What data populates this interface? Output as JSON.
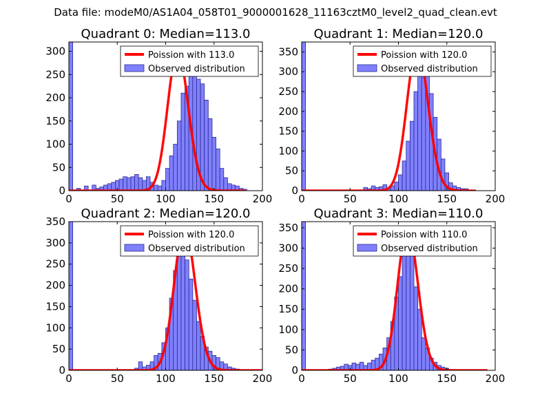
{
  "suptitle": "Data file: modeM0/AS1A04_058T01_9000001628_11163cztM0_level2_quad_clean.evt",
  "colors": {
    "bar_fill": "#8080ff",
    "bar_edge": "#2a2a8f",
    "line": "#ff0000",
    "legend_border": "#000000"
  },
  "chart_data": [
    {
      "type": "bar",
      "title": "Quadrant 0: Median=113.0",
      "legend": [
        "Poission with 113.0",
        "Observed distribution"
      ],
      "legend_position": "top-right",
      "xlim": [
        0,
        200
      ],
      "ylim": [
        0,
        320
      ],
      "xticks": [
        0,
        50,
        100,
        150,
        200
      ],
      "yticks": [
        0,
        50,
        100,
        150,
        200,
        250,
        300
      ],
      "xticklabels": [
        "0",
        "50",
        "100",
        "150",
        "200"
      ],
      "yticklabels": [
        "0",
        "50",
        "100",
        "150",
        "200",
        "250",
        "300"
      ],
      "bin_width": 4,
      "bins_start": 0,
      "values": [
        320,
        0,
        5,
        0,
        10,
        0,
        12,
        5,
        8,
        12,
        15,
        18,
        22,
        25,
        30,
        28,
        30,
        35,
        28,
        22,
        30,
        18,
        12,
        10,
        22,
        48,
        75,
        100,
        150,
        210,
        225,
        258,
        262,
        240,
        230,
        195,
        155,
        115,
        90,
        48,
        28,
        15,
        12,
        10,
        5,
        3
      ],
      "poisson_mean": 113.0,
      "poisson_peak": 300,
      "line_range": [
        0,
        182
      ]
    },
    {
      "type": "bar",
      "title": "Quadrant 1: Median=120.0",
      "legend": [
        "Poission with 120.0",
        "Observed distribution"
      ],
      "legend_position": "top-right",
      "xlim": [
        0,
        200
      ],
      "ylim": [
        0,
        375
      ],
      "xticks": [
        0,
        50,
        100,
        150,
        200
      ],
      "yticks": [
        0,
        50,
        100,
        150,
        200,
        250,
        300,
        350
      ],
      "xticklabels": [
        "0",
        "50",
        "100",
        "150",
        "200"
      ],
      "yticklabels": [
        "0",
        "50",
        "100",
        "150",
        "200",
        "250",
        "300",
        "350"
      ],
      "bin_width": 4,
      "bins_start": 0,
      "values": [
        375,
        0,
        0,
        0,
        0,
        0,
        0,
        0,
        0,
        0,
        0,
        0,
        0,
        0,
        0,
        0,
        8,
        5,
        12,
        8,
        10,
        15,
        5,
        12,
        22,
        40,
        75,
        125,
        175,
        250,
        300,
        350,
        320,
        245,
        185,
        130,
        80,
        45,
        20,
        12,
        8,
        5,
        5
      ],
      "poisson_mean": 120.0,
      "poisson_peak": 362,
      "line_range": [
        0,
        180
      ]
    },
    {
      "type": "bar",
      "title": "Quadrant 2: Median=120.0",
      "legend": [
        "Poission with 120.0",
        "Observed distribution"
      ],
      "legend_position": "top-right",
      "xlim": [
        0,
        200
      ],
      "ylim": [
        0,
        350
      ],
      "xticks": [
        0,
        50,
        100,
        150,
        200
      ],
      "yticks": [
        0,
        50,
        100,
        150,
        200,
        250,
        300,
        350
      ],
      "xticklabels": [
        "0",
        "50",
        "100",
        "150",
        "200"
      ],
      "yticklabels": [
        "0",
        "50",
        "100",
        "150",
        "200",
        "250",
        "300",
        "350"
      ],
      "bin_width": 4,
      "bins_start": 0,
      "values": [
        350,
        0,
        0,
        0,
        0,
        0,
        0,
        0,
        0,
        0,
        0,
        0,
        0,
        0,
        0,
        0,
        0,
        5,
        20,
        8,
        12,
        20,
        35,
        40,
        65,
        100,
        170,
        235,
        290,
        320,
        260,
        215,
        165,
        115,
        80,
        55,
        45,
        35,
        30,
        20,
        15,
        8,
        5,
        3
      ],
      "poisson_mean": 120.0,
      "poisson_peak": 335,
      "line_range": [
        0,
        200
      ]
    },
    {
      "type": "bar",
      "title": "Quadrant 3: Median=110.0",
      "legend": [
        "Poission with 110.0",
        "Observed distribution"
      ],
      "legend_position": "top-right",
      "xlim": [
        0,
        200
      ],
      "ylim": [
        0,
        365
      ],
      "xticks": [
        0,
        50,
        100,
        150,
        200
      ],
      "yticks": [
        0,
        50,
        100,
        150,
        200,
        250,
        300,
        350
      ],
      "xticklabels": [
        "0",
        "50",
        "100",
        "150",
        "200"
      ],
      "yticklabels": [
        "0",
        "50",
        "100",
        "150",
        "200",
        "250",
        "300",
        "350"
      ],
      "bin_width": 4,
      "bins_start": 0,
      "values": [
        365,
        0,
        0,
        0,
        0,
        0,
        0,
        3,
        5,
        8,
        10,
        15,
        12,
        18,
        15,
        20,
        12,
        18,
        25,
        30,
        40,
        55,
        80,
        120,
        180,
        230,
        330,
        320,
        290,
        205,
        150,
        80,
        55,
        30,
        20,
        12,
        8,
        5
      ],
      "poisson_mean": 110.0,
      "poisson_peak": 350,
      "line_range": [
        0,
        192
      ]
    }
  ]
}
